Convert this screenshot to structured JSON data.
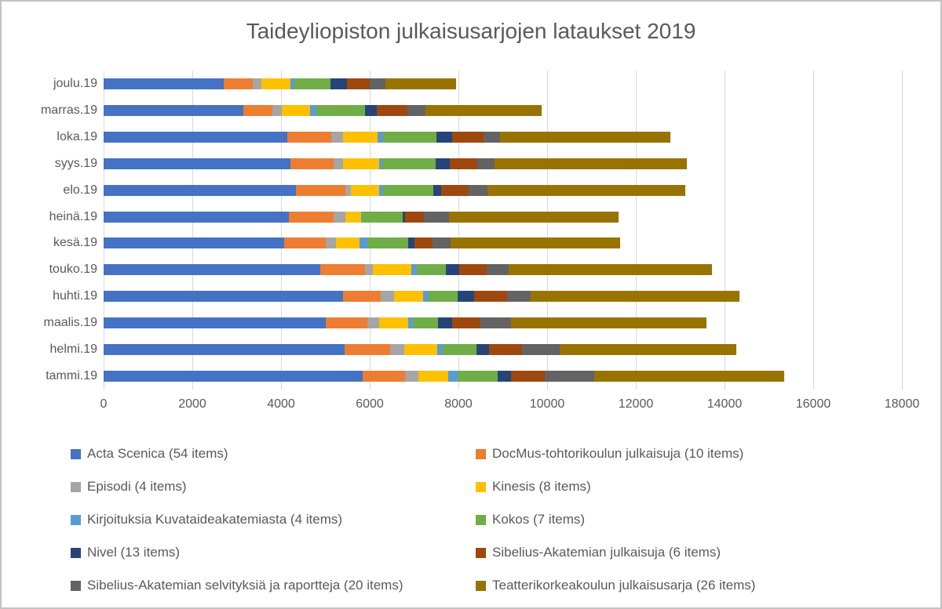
{
  "chart_data": {
    "type": "bar",
    "orientation": "horizontal",
    "stacked": true,
    "title": "Taideyliopiston julkaisusarjojen lataukset 2019",
    "categories": [
      "joulu.19",
      "marras.19",
      "loka.19",
      "syys.19",
      "elo.19",
      "heinä.19",
      "kesä.19",
      "touko.19",
      "huhti.19",
      "maalis.19",
      "helmi.19",
      "tammi.19"
    ],
    "xlim": [
      0,
      18000
    ],
    "x_ticks": [
      0,
      2000,
      4000,
      6000,
      8000,
      10000,
      12000,
      14000,
      16000,
      18000
    ],
    "grid": true,
    "legend_position": "bottom",
    "series": [
      {
        "name": "Acta Scenica (54 items)",
        "color": "#4472C4",
        "values": [
          2700,
          3150,
          4150,
          4220,
          4330,
          4180,
          4070,
          4880,
          5400,
          5010,
          5430,
          5835
        ]
      },
      {
        "name": "DocMus-tohtorikoulun julkaisuja (10 items)",
        "color": "#ED7D31",
        "values": [
          660,
          660,
          990,
          970,
          1120,
          1010,
          940,
          1010,
          850,
          940,
          1030,
          960
        ]
      },
      {
        "name": "Episodi (4 items)",
        "color": "#A5A5A5",
        "values": [
          190,
          200,
          260,
          200,
          120,
          260,
          235,
          175,
          300,
          255,
          325,
          305
        ]
      },
      {
        "name": "Kinesis (8 items)",
        "color": "#FFC000",
        "values": [
          660,
          650,
          780,
          820,
          650,
          350,
          530,
          880,
          660,
          660,
          735,
          675
        ]
      },
      {
        "name": "Kirjoituksia Kuvataideakatemiasta (4 items)",
        "color": "#5B9BD5",
        "values": [
          100,
          130,
          130,
          80,
          90,
          30,
          175,
          120,
          120,
          100,
          120,
          205
        ]
      },
      {
        "name": "Kokos (7 items)",
        "color": "#70AD47",
        "values": [
          800,
          1100,
          1200,
          1190,
          1120,
          910,
          910,
          650,
          650,
          575,
          765,
          910
        ]
      },
      {
        "name": "Nivel (13 items)",
        "color": "#264478",
        "values": [
          370,
          265,
          350,
          330,
          175,
          60,
          145,
          295,
          380,
          325,
          295,
          295
        ]
      },
      {
        "name": "Sibelius-Akatemian julkaisuja (6 items)",
        "color": "#9E480E",
        "values": [
          520,
          700,
          700,
          620,
          620,
          430,
          410,
          620,
          740,
          620,
          735,
          765
        ]
      },
      {
        "name": "Sibelius-Akatemian selvityksiä ja raportteja (20 items)",
        "color": "#636363",
        "values": [
          350,
          410,
          380,
          380,
          440,
          560,
          410,
          500,
          530,
          705,
          855,
          1120
        ]
      },
      {
        "name": "Teatterikorkeakoulun julkaisusarja (26 items)",
        "color": "#997300",
        "values": [
          1590,
          2620,
          3840,
          4340,
          4450,
          3815,
          3815,
          4590,
          4700,
          4400,
          3970,
          4280
        ]
      }
    ]
  }
}
